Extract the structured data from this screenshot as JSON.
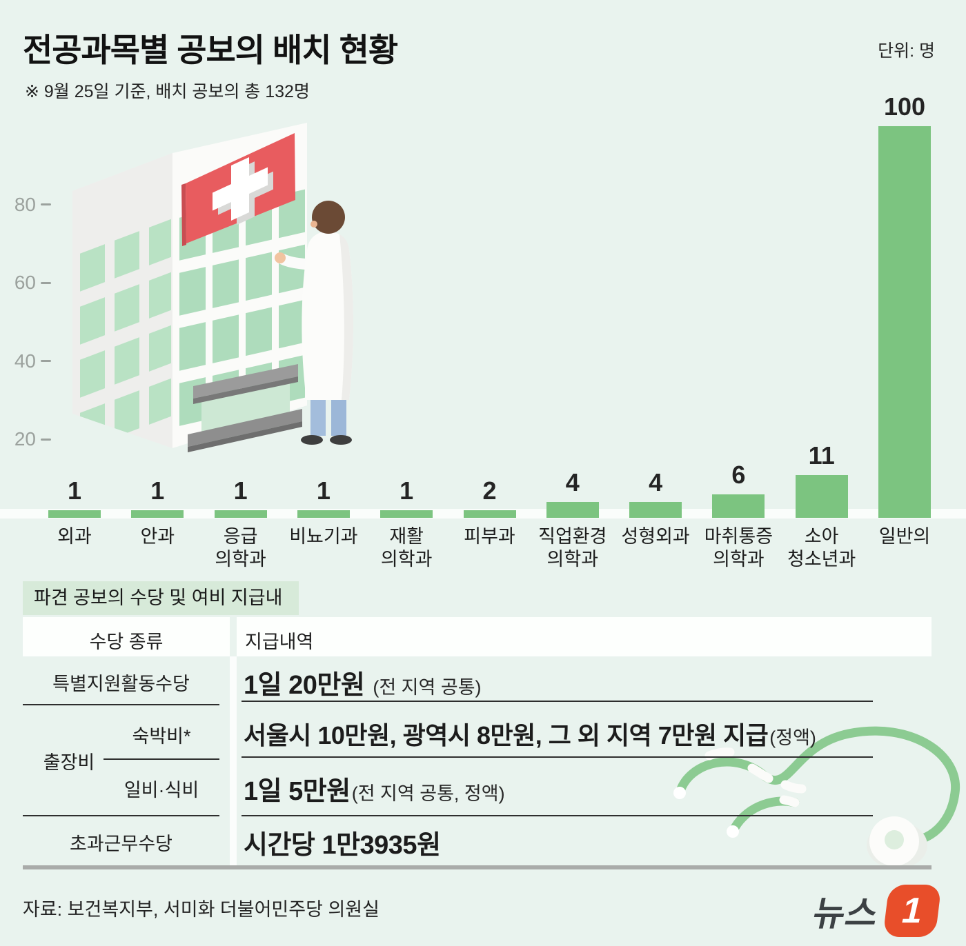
{
  "header": {
    "title": "전공과목별 공보의 배치 현황",
    "subtitle": "※ 9월 25일 기준, 배치 공보의 총 132명",
    "unit_label": "단위: 명"
  },
  "chart_data": {
    "type": "bar",
    "title": "전공과목별 공보의 배치 현황",
    "unit": "명",
    "total": 132,
    "categories": [
      "외과",
      "안과",
      "응급\n의학과",
      "비뇨기과",
      "재활\n의학과",
      "피부과",
      "직업환경\n의학과",
      "성형외과",
      "마취통증\n의학과",
      "소아\n청소년과",
      "일반의"
    ],
    "values": [
      1,
      1,
      1,
      1,
      1,
      2,
      4,
      4,
      6,
      11,
      100
    ],
    "yticks": [
      20,
      40,
      60,
      80
    ],
    "ylim": [
      0,
      100
    ],
    "grid": false,
    "legend": "none"
  },
  "table": {
    "section_title": "파견 공보의 수당 및 여비 지급내역",
    "col_headers": [
      "수당 종류",
      "지급내역"
    ],
    "rows": [
      {
        "type": "특별지원활동수당",
        "value": "1일 20만원",
        "note": "(전 지역 공통)"
      },
      {
        "group": "출장비",
        "type": "숙박비*",
        "value": "서울시 10만원, 광역시 8만원, 그 외 지역 7만원 지급",
        "note": "(정액)"
      },
      {
        "type": "일비·식비",
        "value": "1일 5만원",
        "note": "(전 지역 공통, 정액)"
      },
      {
        "type": "초과근무수당",
        "value": "시간당 1만3935원",
        "note": ""
      }
    ]
  },
  "footer": {
    "source": "자료: 보건복지부, 서미화 더불어민주당 의원실",
    "logo_text": "뉴스",
    "logo_number": "1"
  },
  "colors": {
    "background": "#e9f3ee",
    "bar": "#7cc480",
    "section_box": "#d7ead9",
    "sign_red": "#e85c5f",
    "logo_orange": "#e84e2a",
    "window_mint": "#b9e2c4",
    "divider_dark": "#2e2e2e",
    "divider_gray": "#a9aba9",
    "tick_gray": "#9ba19d",
    "baseline_band": "#fafdfb",
    "text_dark": "#1c1c1c"
  }
}
